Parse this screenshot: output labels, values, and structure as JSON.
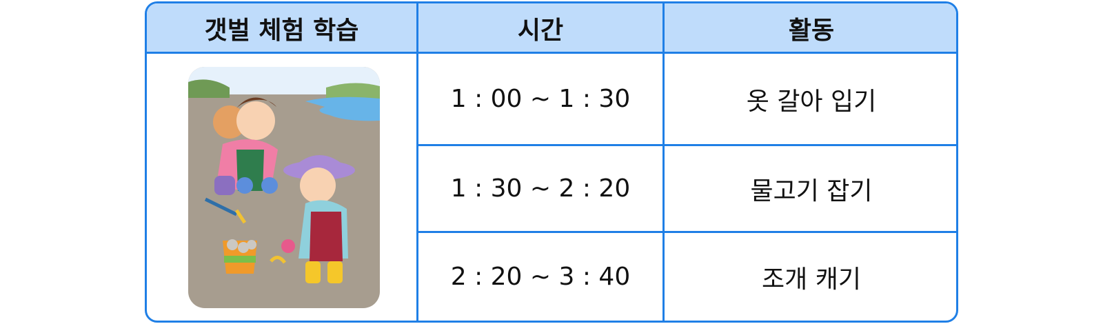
{
  "table": {
    "headers": [
      "갯벌 체험 학습",
      "시간",
      "활동"
    ],
    "rows": [
      {
        "time": "1 : 00 ~ 1 : 30",
        "activity": "옷 갈아 입기"
      },
      {
        "time": "1 : 30 ~ 2 : 20",
        "activity": "물고기 잡기"
      },
      {
        "time": "2 : 20 ~ 3 : 40",
        "activity": "조개 캐기"
      }
    ]
  },
  "colors": {
    "border": "#1f7fe6",
    "header_bg": "#bfdcfb"
  }
}
